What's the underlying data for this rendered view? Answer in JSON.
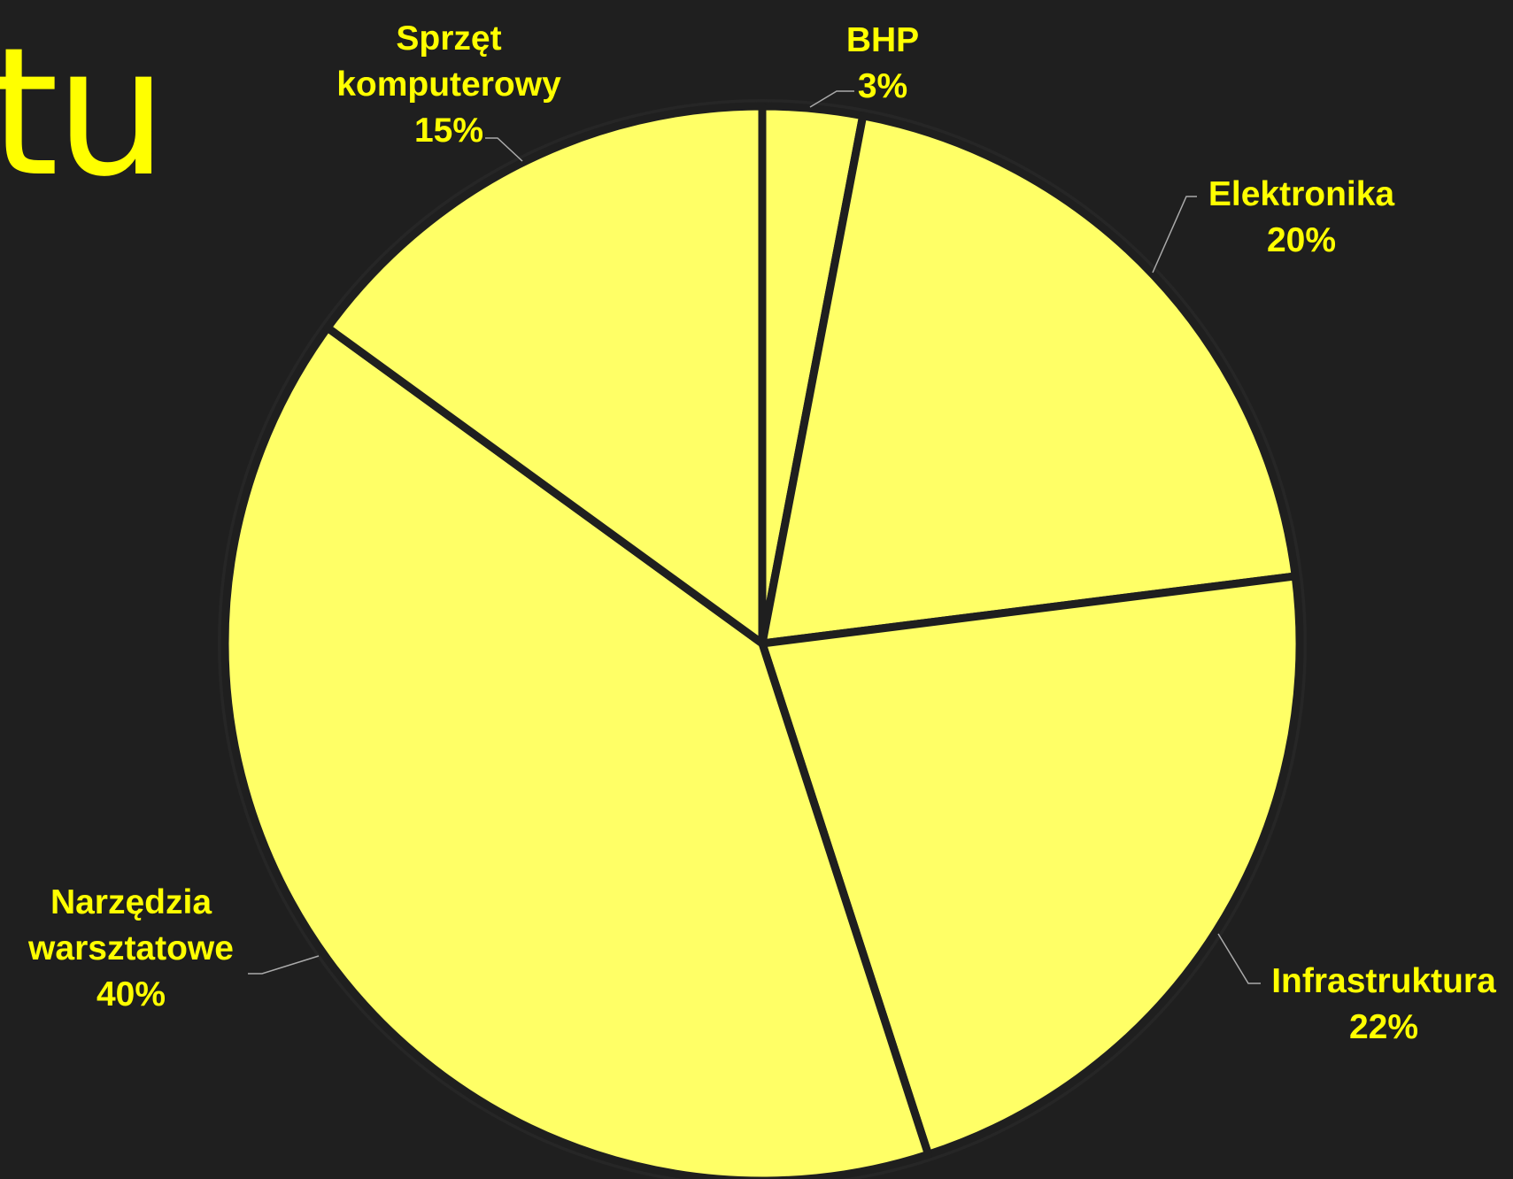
{
  "title_fragment": "tu",
  "colors": {
    "background": "#1f1f1f",
    "slice_fill": "#ffff66",
    "slice_stroke": "#1f1f1f",
    "label_text": "#ffff00",
    "leader_line": "#aaaaaa",
    "title_text": "#ffff00"
  },
  "chart_data": {
    "type": "pie",
    "start": "top",
    "direction": "clockwise",
    "legend": "none",
    "slices": [
      {
        "label_lines": [
          "BHP"
        ],
        "value": 3,
        "value_label": "3%"
      },
      {
        "label_lines": [
          "Elektronika"
        ],
        "value": 20,
        "value_label": "20%"
      },
      {
        "label_lines": [
          "Infrastruktura"
        ],
        "value": 22,
        "value_label": "22%"
      },
      {
        "label_lines": [
          "Narzędzia",
          "warsztatowe"
        ],
        "value": 40,
        "value_label": "40%"
      },
      {
        "label_lines": [
          "Sprzęt",
          "komputerowy"
        ],
        "value": 15,
        "value_label": "15%"
      }
    ]
  }
}
